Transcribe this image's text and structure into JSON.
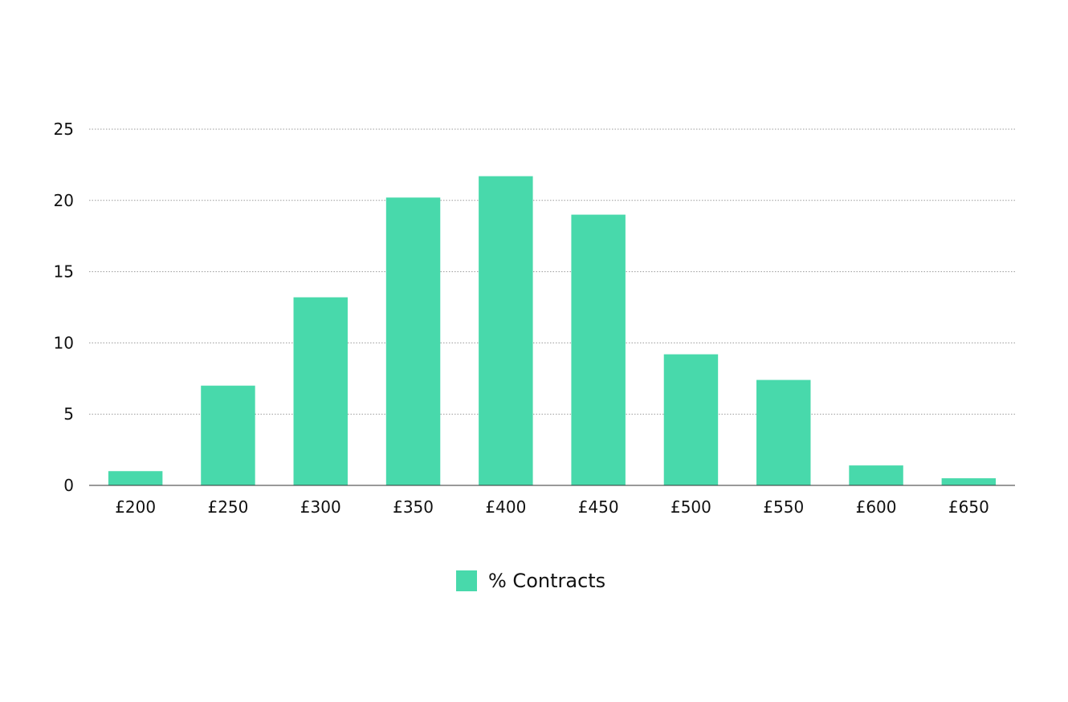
{
  "chart_data": {
    "type": "bar",
    "categories": [
      "£200",
      "£250",
      "£300",
      "£350",
      "£400",
      "£450",
      "£500",
      "£550",
      "£600",
      "£650"
    ],
    "series": [
      {
        "name": "% Contracts",
        "values": [
          1.0,
          7.0,
          13.2,
          20.2,
          21.7,
          19.0,
          9.2,
          7.4,
          1.4,
          0.5
        ],
        "color": "#48d9ab"
      }
    ],
    "ylim": [
      0,
      25
    ],
    "yticks": [
      0,
      5,
      10,
      15,
      20,
      25
    ],
    "grid": true,
    "legend_position": "bottom-center",
    "title": "",
    "xlabel": "",
    "ylabel": ""
  }
}
